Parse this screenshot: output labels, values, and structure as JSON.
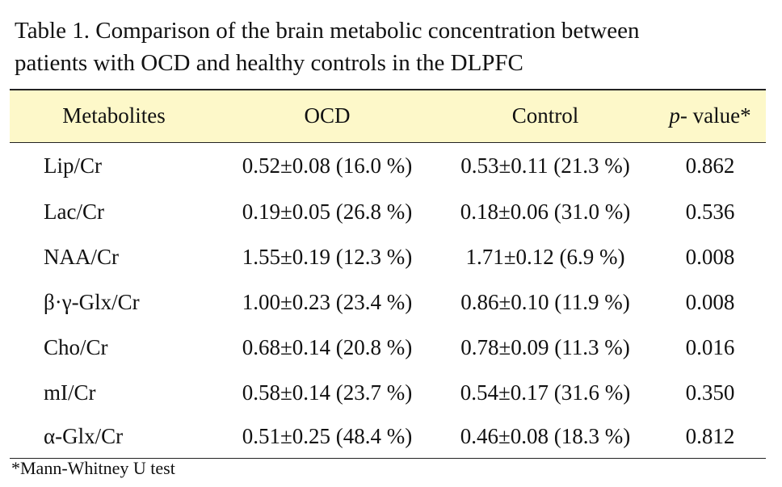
{
  "title": [
    "Table 1. Comparison of the brain metabolic concentration between",
    "patients with OCD and healthy controls in the DLPFC"
  ],
  "table": {
    "headers": [
      "Metabolites",
      "OCD",
      "Control",
      [
        "p-",
        "value*"
      ]
    ],
    "rows": [
      [
        "Lip/Cr",
        "0.52±0.08 (16.0 %)",
        "0.53±0.11 (21.3 %)",
        "0.862"
      ],
      [
        "Lac/Cr",
        "0.19±0.05 (26.8 %)",
        "0.18±0.06 (31.0 %)",
        "0.536"
      ],
      [
        "NAA/Cr",
        "1.55±0.19 (12.3 %)",
        "1.71±0.12 (6.9 %)",
        "0.008"
      ],
      [
        "β·γ-Glx/Cr",
        "1.00±0.23 (23.4 %)",
        "0.86±0.10 (11.9 %)",
        "0.008"
      ],
      [
        "Cho/Cr",
        "0.68±0.14 (20.8 %)",
        "0.78±0.09 (11.3 %)",
        "0.016"
      ],
      [
        "mI/Cr",
        "0.58±0.14 (23.7 %)",
        "0.54±0.17 (31.6 %)",
        "0.350"
      ],
      [
        "α-Glx/Cr",
        "0.51±0.25 (48.4 %)",
        "0.46±0.08 (18.3 %)",
        "0.812"
      ]
    ]
  },
  "footnote": "*Mann-Whitney U test"
}
